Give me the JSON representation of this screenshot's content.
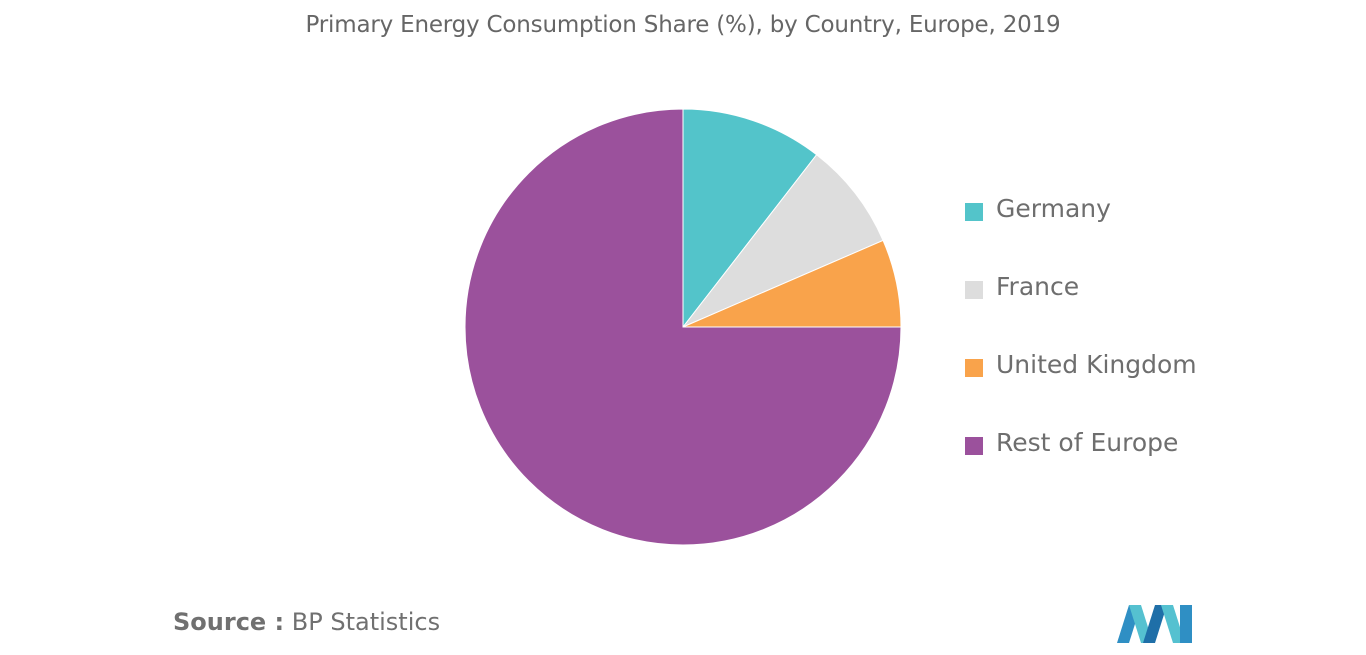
{
  "title": "Primary Energy Consumption Share (%), by Country, Europe, 2019",
  "source": {
    "label": "Source :",
    "value": "BP Statistics"
  },
  "logo_icon": "mordor-intelligence-logo-icon",
  "chart_data": {
    "type": "pie",
    "title": "Primary Energy Consumption Share (%), by Country, Europe, 2019",
    "start_angle": "12 o'clock",
    "direction": "clockwise",
    "legend_position": "right",
    "slices": [
      {
        "label": "Germany",
        "value": 10.5,
        "color": "#53c4ca"
      },
      {
        "label": "France",
        "value": 8.0,
        "color": "#dddddd"
      },
      {
        "label": "United Kingdom",
        "value": 6.5,
        "color": "#f9a34b"
      },
      {
        "label": "Rest of Europe",
        "value": 75.0,
        "color": "#9b519c"
      }
    ]
  }
}
